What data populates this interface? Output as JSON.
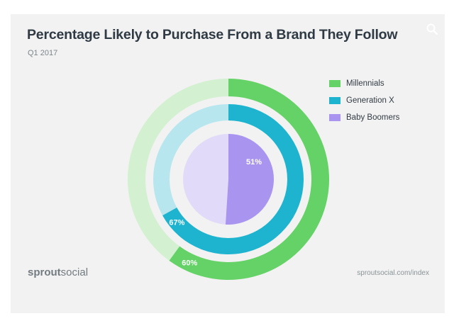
{
  "title": "Percentage Likely to Purchase From a Brand They Follow",
  "subtitle": "Q1 2017",
  "brand": {
    "part1": "sprout",
    "part2": "social"
  },
  "footer_url": "sproutsocial.com/index",
  "icons": {
    "search": "search-icon"
  },
  "chart_data": {
    "type": "pie",
    "subtype": "concentric-donut",
    "title": "Percentage Likely to Purchase From a Brand They Follow",
    "subtitle": "Q1 2017",
    "series": [
      {
        "name": "Millennials",
        "value": 60,
        "label": "60%",
        "color": "#64d266",
        "track_color": "#d3f0d0"
      },
      {
        "name": "Generation X",
        "value": 67,
        "label": "67%",
        "color": "#1eb4cf",
        "track_color": "#b8e6ef"
      },
      {
        "name": "Baby Boomers",
        "value": 51,
        "label": "51%",
        "color": "#a994f0",
        "track_color": "#e1dbf9"
      }
    ],
    "legend_position": "right"
  }
}
